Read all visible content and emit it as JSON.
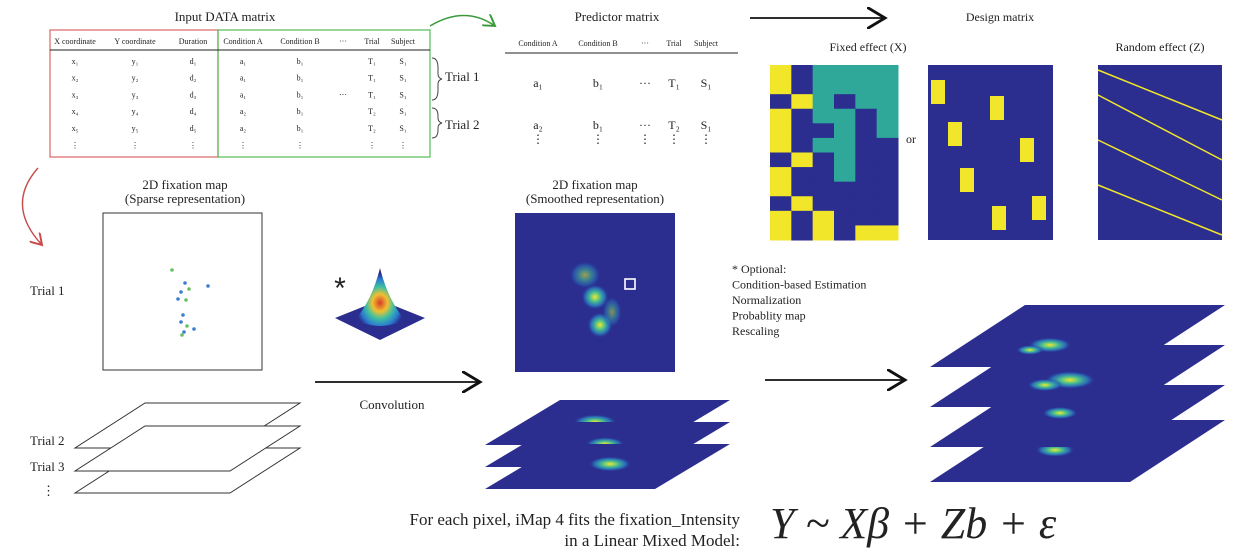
{
  "input_matrix": {
    "title": "Input DATA matrix",
    "headers": [
      "X coordinate",
      "Y coordinate",
      "Duration",
      "Condition A",
      "Condition B",
      "···",
      "Trial",
      "Subject"
    ],
    "rows": [
      [
        "x₁",
        "y₁",
        "d₁",
        "a₁",
        "b₁",
        null,
        "T₁",
        "S₁"
      ],
      [
        "x₂",
        "y₂",
        "d₂",
        "a₁",
        "b₁",
        null,
        "T₁",
        "S₁"
      ],
      [
        "x₃",
        "y₃",
        "d₃",
        "a₁",
        "b₁",
        "···",
        "T₁",
        "S₁"
      ],
      [
        "x₄",
        "y₄",
        "d₄",
        "a₂",
        "b₁",
        null,
        "T₂",
        "S₁"
      ],
      [
        "x₅",
        "y₅",
        "d₅",
        "a₂",
        "b₁",
        null,
        "T₂",
        "S₁"
      ],
      [
        "⋮",
        "⋮",
        "⋮",
        "⋮",
        "⋮",
        null,
        "⋮",
        "⋮"
      ]
    ]
  },
  "trial_braces": [
    "Trial 1",
    "Trial 2"
  ],
  "predictor_matrix": {
    "title": "Predictor matrix",
    "headers": [
      "Condition A",
      "Condition B",
      "···",
      "Trial",
      "Subject"
    ],
    "rows": [
      [
        "a₁",
        "b₁",
        "···",
        "T₁",
        "S₁"
      ],
      [
        "a₂",
        "b₁",
        "···",
        "T₂",
        "S₁"
      ],
      [
        "⋮",
        "⋮",
        "⋮",
        "⋮",
        "⋮"
      ]
    ]
  },
  "design_matrix": {
    "title": "Design matrix",
    "fixed_label": "Fixed effect (X)",
    "or": "or",
    "random_label": "Random effect (Z)"
  },
  "sparse_map": {
    "title": "2D fixation map",
    "subtitle": "(Sparse representation)",
    "trials": [
      "Trial 1",
      "Trial 2",
      "Trial 3",
      "⋮"
    ]
  },
  "kernel_symbol": "*",
  "convolution": "Convolution",
  "smoothed_map": {
    "title": "2D fixation map",
    "subtitle": "(Smoothed representation)"
  },
  "optional": [
    "* Optional:",
    "Condition-based Estimation",
    "Normalization",
    "Probablity map",
    "Rescaling"
  ],
  "footer": {
    "lines": [
      "For each pixel, iMap 4 fits the fixation_Intensity",
      "in a Linear Mixed Model:"
    ],
    "formula": "Y ~ Xβ + Zb + ε"
  }
}
